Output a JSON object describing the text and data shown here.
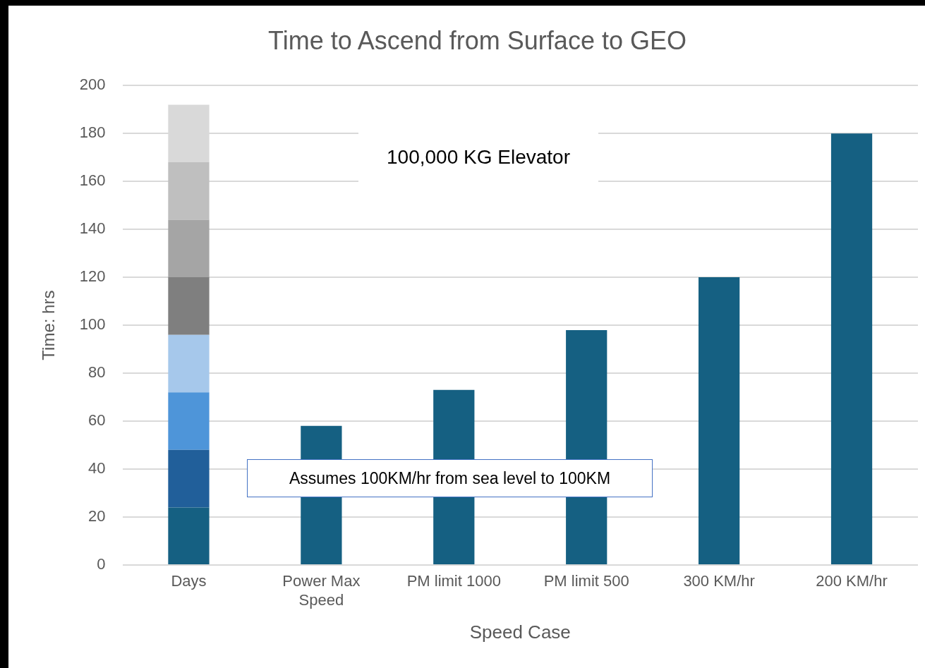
{
  "chart_data": {
    "type": "bar",
    "title": "Time to Ascend from Surface to GEO",
    "xlabel": "Speed Case",
    "ylabel": "Time: hrs",
    "categories": [
      "Days",
      "Power Max Speed",
      "PM limit 1000",
      "PM limit 500",
      "300 KM/hr",
      "200 KM/hr"
    ],
    "stacked": true,
    "series": [
      {
        "color": "#156082",
        "values": [
          24,
          58,
          73,
          98,
          120,
          180
        ]
      },
      {
        "color": "#215f9a",
        "values": [
          24,
          null,
          null,
          null,
          null,
          null
        ]
      },
      {
        "color": "#4e95d9",
        "values": [
          24,
          null,
          null,
          null,
          null,
          null
        ]
      },
      {
        "color": "#a6c8eb",
        "values": [
          24,
          null,
          null,
          null,
          null,
          null
        ]
      },
      {
        "color": "#7f7f7f",
        "values": [
          24,
          null,
          null,
          null,
          null,
          null
        ]
      },
      {
        "color": "#a5a5a5",
        "values": [
          24,
          null,
          null,
          null,
          null,
          null
        ]
      },
      {
        "color": "#bfbfbf",
        "values": [
          24,
          null,
          null,
          null,
          null,
          null
        ]
      },
      {
        "color": "#d9d9d9",
        "values": [
          24,
          null,
          null,
          null,
          null,
          null
        ]
      }
    ],
    "ylim": [
      0,
      200
    ],
    "yticks": [
      0,
      20,
      40,
      60,
      80,
      100,
      120,
      140,
      160,
      180,
      200
    ],
    "grid": "y",
    "legend": false,
    "annotations": [
      "100,000 KG Elevator",
      "Assumes 100KM/hr from sea level to 100KM"
    ]
  }
}
